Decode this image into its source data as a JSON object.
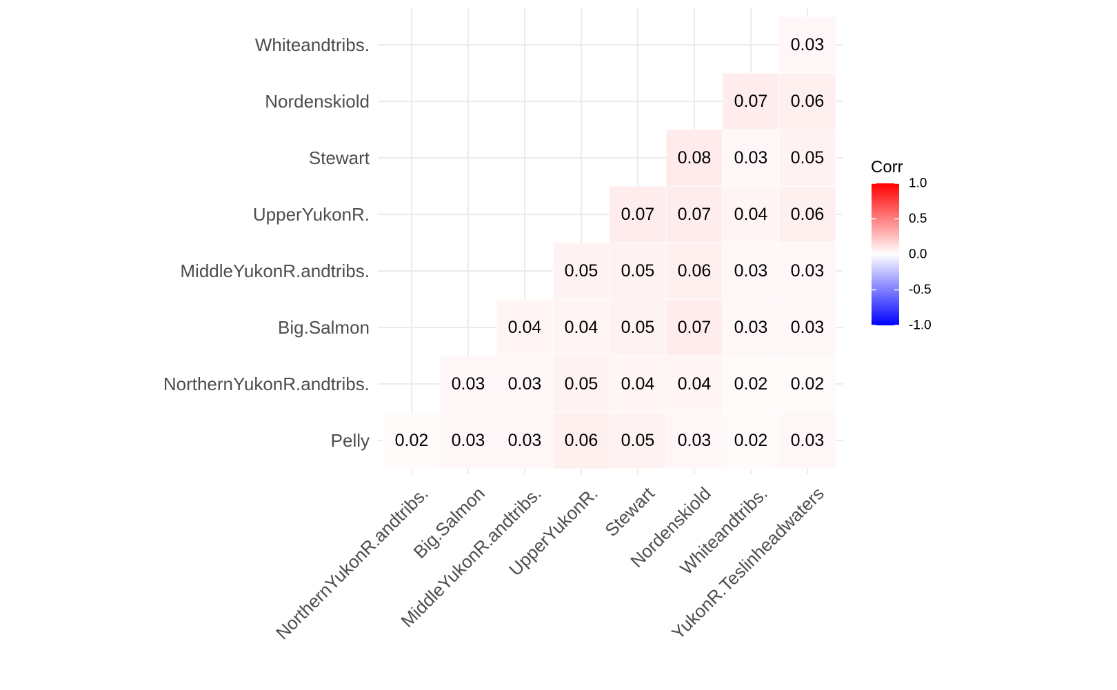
{
  "chart_data": {
    "type": "heatmap",
    "title": "",
    "xlabel": "",
    "ylabel": "",
    "x_categories": [
      "NorthernYukonR.andtribs.",
      "Big.Salmon",
      "MiddleYukonR.andtribs.",
      "UpperYukonR.",
      "Stewart",
      "Nordenskiold",
      "Whiteandtribs.",
      "YukonR.Teslinheadwaters"
    ],
    "y_categories": [
      "Pelly",
      "NorthernYukonR.andtribs.",
      "Big.Salmon",
      "MiddleYukonR.andtribs.",
      "UpperYukonR.",
      "Stewart",
      "Nordenskiold",
      "Whiteandtribs."
    ],
    "cells": [
      {
        "x": "NorthernYukonR.andtribs.",
        "y": "Pelly",
        "value": 0.02,
        "label": "0.02"
      },
      {
        "x": "Big.Salmon",
        "y": "Pelly",
        "value": 0.03,
        "label": "0.03"
      },
      {
        "x": "MiddleYukonR.andtribs.",
        "y": "Pelly",
        "value": 0.03,
        "label": "0.03"
      },
      {
        "x": "UpperYukonR.",
        "y": "Pelly",
        "value": 0.06,
        "label": "0.06"
      },
      {
        "x": "Stewart",
        "y": "Pelly",
        "value": 0.05,
        "label": "0.05"
      },
      {
        "x": "Nordenskiold",
        "y": "Pelly",
        "value": 0.03,
        "label": "0.03"
      },
      {
        "x": "Whiteandtribs.",
        "y": "Pelly",
        "value": 0.02,
        "label": "0.02"
      },
      {
        "x": "YukonR.Teslinheadwaters",
        "y": "Pelly",
        "value": 0.03,
        "label": "0.03"
      },
      {
        "x": "Big.Salmon",
        "y": "NorthernYukonR.andtribs.",
        "value": 0.03,
        "label": "0.03"
      },
      {
        "x": "MiddleYukonR.andtribs.",
        "y": "NorthernYukonR.andtribs.",
        "value": 0.03,
        "label": "0.03"
      },
      {
        "x": "UpperYukonR.",
        "y": "NorthernYukonR.andtribs.",
        "value": 0.05,
        "label": "0.05"
      },
      {
        "x": "Stewart",
        "y": "NorthernYukonR.andtribs.",
        "value": 0.04,
        "label": "0.04"
      },
      {
        "x": "Nordenskiold",
        "y": "NorthernYukonR.andtribs.",
        "value": 0.04,
        "label": "0.04"
      },
      {
        "x": "Whiteandtribs.",
        "y": "NorthernYukonR.andtribs.",
        "value": 0.02,
        "label": "0.02"
      },
      {
        "x": "YukonR.Teslinheadwaters",
        "y": "NorthernYukonR.andtribs.",
        "value": 0.02,
        "label": "0.02"
      },
      {
        "x": "MiddleYukonR.andtribs.",
        "y": "Big.Salmon",
        "value": 0.04,
        "label": "0.04"
      },
      {
        "x": "UpperYukonR.",
        "y": "Big.Salmon",
        "value": 0.04,
        "label": "0.04"
      },
      {
        "x": "Stewart",
        "y": "Big.Salmon",
        "value": 0.05,
        "label": "0.05"
      },
      {
        "x": "Nordenskiold",
        "y": "Big.Salmon",
        "value": 0.07,
        "label": "0.07"
      },
      {
        "x": "Whiteandtribs.",
        "y": "Big.Salmon",
        "value": 0.03,
        "label": "0.03"
      },
      {
        "x": "YukonR.Teslinheadwaters",
        "y": "Big.Salmon",
        "value": 0.03,
        "label": "0.03"
      },
      {
        "x": "UpperYukonR.",
        "y": "MiddleYukonR.andtribs.",
        "value": 0.05,
        "label": "0.05"
      },
      {
        "x": "Stewart",
        "y": "MiddleYukonR.andtribs.",
        "value": 0.05,
        "label": "0.05"
      },
      {
        "x": "Nordenskiold",
        "y": "MiddleYukonR.andtribs.",
        "value": 0.06,
        "label": "0.06"
      },
      {
        "x": "Whiteandtribs.",
        "y": "MiddleYukonR.andtribs.",
        "value": 0.03,
        "label": "0.03"
      },
      {
        "x": "YukonR.Teslinheadwaters",
        "y": "MiddleYukonR.andtribs.",
        "value": 0.03,
        "label": "0.03"
      },
      {
        "x": "Stewart",
        "y": "UpperYukonR.",
        "value": 0.07,
        "label": "0.07"
      },
      {
        "x": "Nordenskiold",
        "y": "UpperYukonR.",
        "value": 0.07,
        "label": "0.07"
      },
      {
        "x": "Whiteandtribs.",
        "y": "UpperYukonR.",
        "value": 0.04,
        "label": "0.04"
      },
      {
        "x": "YukonR.Teslinheadwaters",
        "y": "UpperYukonR.",
        "value": 0.06,
        "label": "0.06"
      },
      {
        "x": "Nordenskiold",
        "y": "Stewart",
        "value": 0.08,
        "label": "0.08"
      },
      {
        "x": "Whiteandtribs.",
        "y": "Stewart",
        "value": 0.03,
        "label": "0.03"
      },
      {
        "x": "YukonR.Teslinheadwaters",
        "y": "Stewart",
        "value": 0.05,
        "label": "0.05"
      },
      {
        "x": "Whiteandtribs.",
        "y": "Nordenskiold",
        "value": 0.07,
        "label": "0.07"
      },
      {
        "x": "YukonR.Teslinheadwaters",
        "y": "Nordenskiold",
        "value": 0.06,
        "label": "0.06"
      },
      {
        "x": "YukonR.Teslinheadwaters",
        "y": "Whiteandtribs.",
        "value": 0.03,
        "label": "0.03"
      }
    ],
    "color_scale": {
      "low": "#0000FF",
      "mid": "#FFFFFF",
      "high": "#FF0000",
      "limits": [
        -1,
        1
      ]
    },
    "legend": {
      "title": "Corr",
      "position": "right",
      "ticks": [
        1.0,
        0.5,
        0.0,
        -0.5,
        -1.0
      ],
      "tick_labels": [
        "1.0",
        "0.5",
        "0.0",
        "-0.5",
        "-1.0"
      ]
    },
    "grid": true
  }
}
